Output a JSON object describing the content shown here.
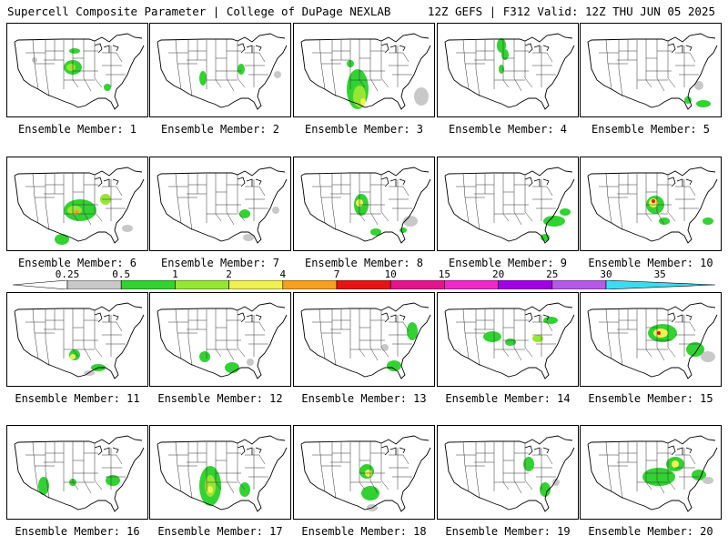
{
  "header": {
    "title": "Supercell Composite Parameter | College of DuPage NEXLAB",
    "run_info": "12Z GEFS | F312 Valid: 12Z THU JUN 05 2025"
  },
  "colorbar": {
    "labels": [
      "0.25",
      "0.5",
      "1",
      "2",
      "4",
      "7",
      "10",
      "15",
      "20",
      "25",
      "30",
      "35"
    ],
    "colors": [
      "#c8c8c8",
      "#32d232",
      "#96e632",
      "#f0f050",
      "#f5a020",
      "#e61414",
      "#e6148c",
      "#f028c8",
      "#a000e6",
      "#b45ae6",
      "#3cdcf0"
    ]
  },
  "members": [
    {
      "label": "Ensemble Member: 1"
    },
    {
      "label": "Ensemble Member: 2"
    },
    {
      "label": "Ensemble Member: 3"
    },
    {
      "label": "Ensemble Member: 4"
    },
    {
      "label": "Ensemble Member: 5"
    },
    {
      "label": "Ensemble Member: 6"
    },
    {
      "label": "Ensemble Member: 7"
    },
    {
      "label": "Ensemble Member: 8"
    },
    {
      "label": "Ensemble Member: 9"
    },
    {
      "label": "Ensemble Member: 10"
    },
    {
      "label": "Ensemble Member: 11"
    },
    {
      "label": "Ensemble Member: 12"
    },
    {
      "label": "Ensemble Member: 13"
    },
    {
      "label": "Ensemble Member: 14"
    },
    {
      "label": "Ensemble Member: 15"
    },
    {
      "label": "Ensemble Member: 16"
    },
    {
      "label": "Ensemble Member: 17"
    },
    {
      "label": "Ensemble Member: 18"
    },
    {
      "label": "Ensemble Member: 19"
    },
    {
      "label": "Ensemble Member: 20"
    }
  ]
}
